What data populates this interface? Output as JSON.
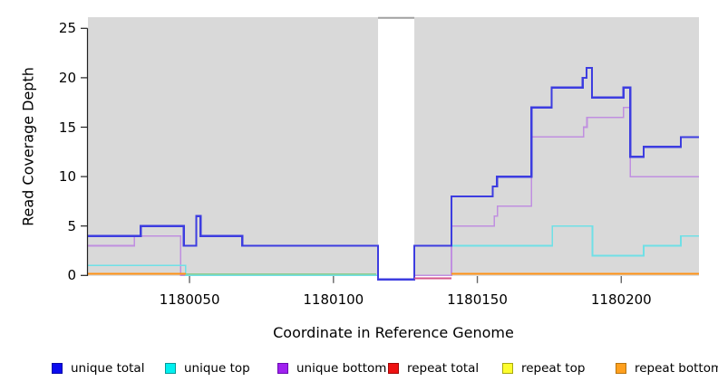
{
  "chart_data": {
    "type": "line",
    "subtype": "step-coverage-plot",
    "title": "",
    "xlabel": "Coordinate in Reference Genome",
    "ylabel": "Read Coverage Depth",
    "xlim": [
      1180014.7,
      1180227
    ],
    "ylim": [
      0,
      26
    ],
    "x_ticks": [
      1180050,
      1180100,
      1180150,
      1180200
    ],
    "y_ticks": [
      0,
      5,
      10,
      15,
      20,
      25
    ],
    "plot_background": "#d9d9d9",
    "gap_band": {
      "x1": 1180115.5,
      "x2": 1180128.1,
      "fill": "#ffffff",
      "top_border": "#a0a0a0"
    },
    "series": [
      {
        "name": "unique bottom",
        "color": "#c08fe0",
        "width": 1.6,
        "breaks": [
          [
            1180014.7,
            3
          ],
          [
            1180030.8,
            4
          ],
          [
            1180046.9,
            0
          ],
          [
            1180141,
            5
          ],
          [
            1180155.9,
            6
          ],
          [
            1180157,
            7
          ],
          [
            1180168.8,
            14
          ],
          [
            1180186.9,
            15
          ],
          [
            1180188.1,
            16
          ],
          [
            1180200.8,
            17
          ],
          [
            1180203.1,
            10
          ]
        ],
        "x_end": 1180227
      },
      {
        "name": "unique top",
        "color": "#6fe0e6",
        "width": 1.6,
        "breaks": [
          [
            1180014.7,
            1
          ],
          [
            1180048.7,
            0
          ],
          [
            1180128.1,
            3
          ],
          [
            1180176,
            5
          ],
          [
            1180190,
            2
          ],
          [
            1180207.8,
            3
          ],
          [
            1180220.7,
            4
          ]
        ],
        "x_end": 1180227
      },
      {
        "name": "unique total",
        "color": "#3d3de0",
        "width": 2.3,
        "breaks": [
          [
            1180014.7,
            4
          ],
          [
            1180033,
            5
          ],
          [
            1180048,
            3
          ],
          [
            1180052.3,
            6
          ],
          [
            1180053.8,
            4
          ],
          [
            1180068.3,
            3
          ],
          [
            1180115.5,
            -0.4
          ],
          [
            1180128.1,
            3
          ],
          [
            1180141,
            8
          ],
          [
            1180155.3,
            9
          ],
          [
            1180156.8,
            10
          ],
          [
            1180168.8,
            17
          ],
          [
            1180175.8,
            19
          ],
          [
            1180186.6,
            20
          ],
          [
            1180187.9,
            21
          ],
          [
            1180189.8,
            18
          ],
          [
            1180200.8,
            19
          ],
          [
            1180203.1,
            12
          ],
          [
            1180207.8,
            13
          ],
          [
            1180220.7,
            14
          ]
        ],
        "x_end": 1180227
      }
    ],
    "zero_line_segments": [
      {
        "name": "repeat-bottom-left",
        "color": "#ff9215",
        "width": 2.0,
        "x1": 1180014.7,
        "x2": 1180048.7,
        "y": 0.15
      },
      {
        "name": "overlap-green",
        "color": "#8fcd90",
        "width": 1.6,
        "x1": 1180048.7,
        "x2": 1180114.9,
        "y": 0.15
      },
      {
        "name": "overlap-pink",
        "color": "#d4548a",
        "width": 1.8,
        "x1": 1180128.1,
        "x2": 1180141,
        "y": -0.3
      },
      {
        "name": "repeat-bottom-right",
        "color": "#ff9215",
        "width": 2.0,
        "x1": 1180141,
        "x2": 1180227,
        "y": 0.15
      }
    ]
  },
  "axes": {
    "x_title": "Coordinate in Reference Genome",
    "y_title": "Read Coverage Depth"
  },
  "legend": {
    "items": [
      {
        "label": "unique total",
        "fill": "#0b0bef",
        "border": "#0808a8"
      },
      {
        "label": "unique top",
        "fill": "#00f0f0",
        "border": "#089898"
      },
      {
        "label": "unique bottom",
        "fill": "#a021f0",
        "border": "#6a0bb0"
      },
      {
        "label": "repeat total",
        "fill": "#ee1212",
        "border": "#a00808"
      },
      {
        "label": "repeat top",
        "fill": "#fdfd2e",
        "border": "#a8a810"
      },
      {
        "label": "repeat bottom",
        "fill": "#ffa01e",
        "border": "#b87410"
      }
    ]
  }
}
